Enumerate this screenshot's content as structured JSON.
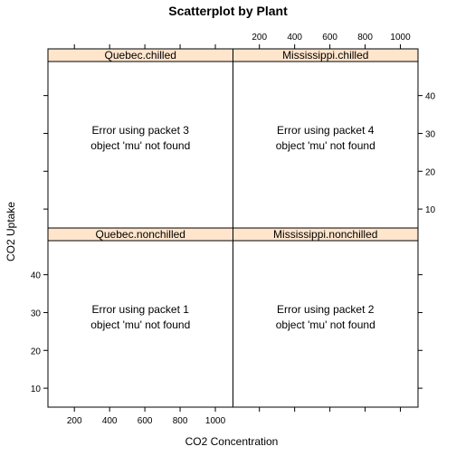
{
  "chart_data": {
    "type": "scatter",
    "title": "Scatterplot by Plant",
    "xlabel": "CO2 Concentration",
    "ylabel": "CO2 Uptake",
    "xlim": [
      50,
      1100
    ],
    "ylim": [
      5,
      49
    ],
    "x_ticks": [
      200,
      400,
      600,
      800,
      1000
    ],
    "y_ticks": [
      10,
      20,
      30,
      40
    ],
    "panels": [
      {
        "row": 1,
        "col": 1,
        "strip": "Quebec.nonchilled",
        "lines": [
          "Error using packet 1",
          "object 'mu' not found"
        ]
      },
      {
        "row": 1,
        "col": 2,
        "strip": "Mississippi.nonchilled",
        "lines": [
          "Error using packet 2",
          "object 'mu' not found"
        ]
      },
      {
        "row": 2,
        "col": 1,
        "strip": "Quebec.chilled",
        "lines": [
          "Error using packet 3",
          "object 'mu' not found"
        ]
      },
      {
        "row": 2,
        "col": 2,
        "strip": "Mississippi.chilled",
        "lines": [
          "Error using packet 4",
          "object 'mu' not found"
        ]
      }
    ],
    "colors": {
      "strip_bg": "#ffe5cc",
      "border": "#000000",
      "text": "#000000",
      "background": "#ffffff"
    }
  }
}
